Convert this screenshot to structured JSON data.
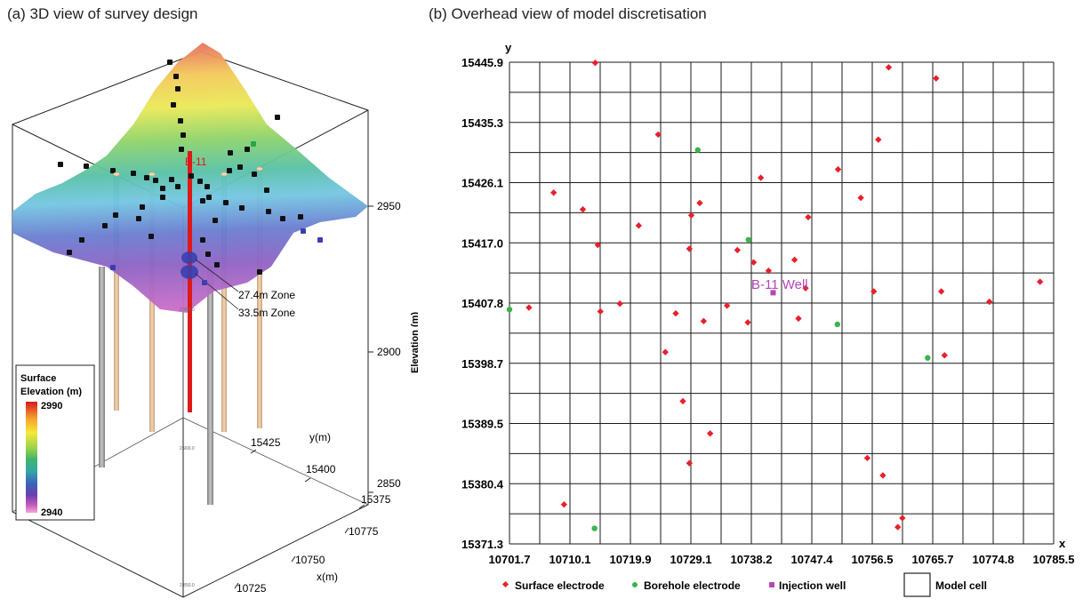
{
  "panel_a": {
    "title": "(a) 3D view of survey design",
    "well_label": "B-11",
    "zone_labels": [
      "27.4m  Zone",
      "33.5m  Zone"
    ],
    "elevation_axis": {
      "label": "Elevation (m)",
      "ticks": [
        "2950",
        "2900",
        "2850"
      ]
    },
    "y_axis": {
      "label": "y(m)",
      "ticks": [
        "15425",
        "15400",
        "15375"
      ]
    },
    "x_axis": {
      "label": "x(m)",
      "ticks": [
        "10775",
        "10750",
        "10725"
      ]
    },
    "small_ticks": [
      "2,900.0",
      "2,900.0",
      "2,850.0"
    ],
    "legend": {
      "title_line1": "Surface",
      "title_line2": "Elevation (m)",
      "max": "2990",
      "min": "2940",
      "colors": [
        "#d7191c",
        "#f4a02a",
        "#f6e83c",
        "#9ad14b",
        "#3fb56a",
        "#35a7a8",
        "#3a62b9",
        "#6a3fb0",
        "#c65bb8",
        "#f3a6dc"
      ]
    },
    "surface_colors": {
      "peak": "#e6625a",
      "mid": "#f4e048",
      "green": "#8fcf5b",
      "teal": "#5bc2c0",
      "blue": "#5a6ec9",
      "low": "#c65bb8"
    },
    "borehole_colors": {
      "tan": "#d9b48a",
      "grey": "#9e9e9e",
      "teal": "#3f9fa6",
      "well": "#e01818"
    },
    "surface_points_color": "#111111",
    "borehole_points_color": "#2aa548"
  },
  "panel_b": {
    "title": "(b) Overhead view of model discretisation",
    "axis_x_label": "x",
    "axis_y_label": "y",
    "x_ticks": [
      "10701.7",
      "10710.1",
      "10719.9",
      "10729.1",
      "10738.2",
      "10747.4",
      "10756.5",
      "10765.7",
      "10774.8",
      "10785.5"
    ],
    "y_ticks": [
      "15445.9",
      "15435.3",
      "15426.1",
      "15417.0",
      "15407.8",
      "15398.7",
      "15389.5",
      "15380.4",
      "15371.3"
    ],
    "well_label": "B-11 Well",
    "colors": {
      "surface": "#e8202a",
      "borehole": "#3cb44b",
      "injection": "#b447b7",
      "grid": "#1a1a1a"
    },
    "legend": [
      "Surface electrode",
      "Borehole electrode",
      "Injection well",
      "Model cell"
    ]
  },
  "chart_data": {
    "type": "scatter",
    "title": "(b) Overhead view of model discretisation",
    "xlabel": "x",
    "ylabel": "y",
    "xlim": [
      10701.7,
      10785.5
    ],
    "ylim": [
      15371.3,
      15445.9
    ],
    "grid": true,
    "legend_placement": "bottom",
    "series": [
      {
        "name": "Surface electrode",
        "marker": "diamond",
        "color": "#e8202a",
        "points": [
          [
            10714.9,
            15445.8
          ],
          [
            10760.1,
            15445.1
          ],
          [
            10767.4,
            15443.4
          ],
          [
            10724.6,
            15434.7
          ],
          [
            10758.5,
            15433.9
          ],
          [
            10752.3,
            15429.3
          ],
          [
            10740.4,
            15428.0
          ],
          [
            10708.5,
            15425.7
          ],
          [
            10731.0,
            15424.1
          ],
          [
            10755.8,
            15424.9
          ],
          [
            10713.0,
            15423.1
          ],
          [
            10729.7,
            15422.2
          ],
          [
            10721.6,
            15420.6
          ],
          [
            10747.7,
            15421.9
          ],
          [
            10715.3,
            15417.6
          ],
          [
            10729.4,
            15417.0
          ],
          [
            10736.8,
            15416.8
          ],
          [
            10745.6,
            15415.3
          ],
          [
            10739.3,
            15414.9
          ],
          [
            10741.6,
            15413.6
          ],
          [
            10747.3,
            15410.9
          ],
          [
            10757.8,
            15410.4
          ],
          [
            10768.2,
            15410.4
          ],
          [
            10775.6,
            15408.8
          ],
          [
            10783.4,
            15411.9
          ],
          [
            10718.7,
            15408.5
          ],
          [
            10735.2,
            15408.2
          ],
          [
            10746.2,
            15406.2
          ],
          [
            10731.6,
            15405.8
          ],
          [
            10704.7,
            15407.9
          ],
          [
            10715.7,
            15407.3
          ],
          [
            10727.3,
            15407.0
          ],
          [
            10738.4,
            15405.6
          ],
          [
            10725.7,
            15401.0
          ],
          [
            10768.7,
            15400.5
          ],
          [
            10728.4,
            15393.4
          ],
          [
            10732.6,
            15388.4
          ],
          [
            10756.8,
            15384.6
          ],
          [
            10729.4,
            15383.8
          ],
          [
            10759.2,
            15381.9
          ],
          [
            10710.1,
            15377.4
          ],
          [
            10762.2,
            15375.3
          ],
          [
            10761.5,
            15373.9
          ]
        ]
      },
      {
        "name": "Borehole electrode",
        "marker": "circle",
        "color": "#3cb44b",
        "points": [
          [
            10701.7,
            15407.6
          ],
          [
            10730.7,
            15432.3
          ],
          [
            10738.5,
            15418.4
          ],
          [
            10752.2,
            15405.3
          ],
          [
            10766.1,
            15400.1
          ],
          [
            10714.8,
            15373.7
          ]
        ]
      },
      {
        "name": "Injection well",
        "marker": "square",
        "color": "#b447b7",
        "points": [
          [
            10742.3,
            15410.2
          ]
        ]
      }
    ]
  }
}
